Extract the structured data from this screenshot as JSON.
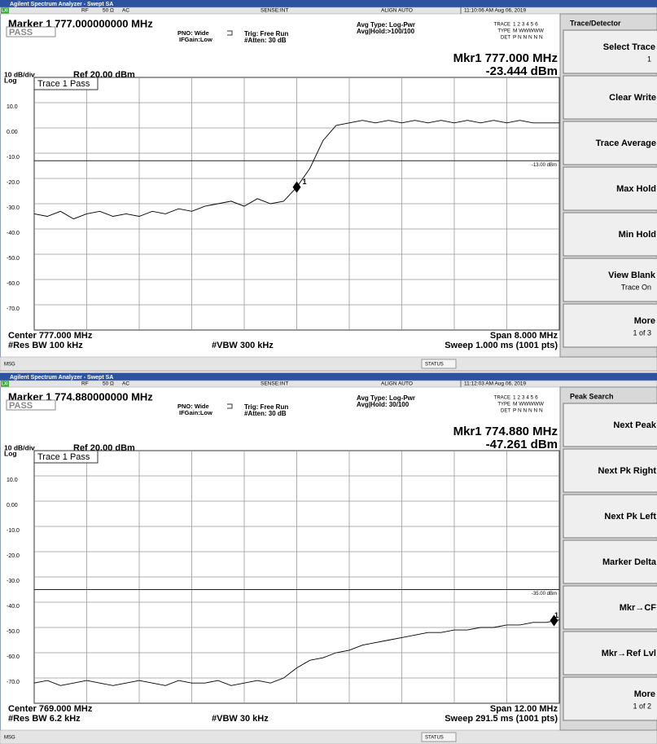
{
  "screens": [
    {
      "app_title": "Agilent Spectrum Analyzer - Swept SA",
      "status": {
        "lxi": "LXI",
        "rf": "RF",
        "impedance": "50 Ω",
        "coupling": "AC",
        "sense": "SENSE:INT",
        "align": "ALIGN AUTO",
        "time": "11:10:06 AM Aug 06, 2019"
      },
      "marker_title": "Marker 1 777.000000000 MHz",
      "pass": "PASS",
      "pno": "PNO: Wide",
      "ifgain": "IFGain:Low",
      "trig": "Trig: Free Run",
      "atten": "#Atten: 30 dB",
      "avg_type": "Avg Type: Log-Pwr",
      "avg_hold": "Avg|Hold:>100/100",
      "trace_table": [
        [
          "TRACE",
          "1 2 3 4 5 6"
        ],
        [
          "TYPE",
          "M WWWWW"
        ],
        [
          "DET",
          "P N N N N N"
        ]
      ],
      "mkr_freq": "Mkr1 777.000 MHz",
      "mkr_level": "-23.444 dBm",
      "scale": "10 dB/div",
      "log": "Log",
      "ref": "Ref 20.00 dBm",
      "trace_label": "Trace 1 Pass",
      "center": "Center 777.000 MHz",
      "rbw": "#Res BW 100 kHz",
      "vbw": "#VBW 300 kHz",
      "span": "Span 8.000 MHz",
      "sweep": "Sweep 1.000 ms (1001 pts)",
      "msg": "MSG",
      "status_box": "STATUS",
      "chart_data": {
        "type": "line",
        "xlim": [
          773,
          781
        ],
        "ylim": [
          -80,
          20
        ],
        "yticks": [
          {
            "value": 10,
            "label": "10.0"
          },
          {
            "value": 0,
            "label": "0.00"
          },
          {
            "value": -10,
            "label": "-10.0"
          },
          {
            "value": -20,
            "label": "-20.0"
          },
          {
            "value": -30,
            "label": "-30.0"
          },
          {
            "value": -40,
            "label": "-40.0"
          },
          {
            "value": -50,
            "label": "-50.0"
          },
          {
            "value": -60,
            "label": "-60.0"
          },
          {
            "value": -70,
            "label": "-70.0"
          }
        ],
        "limit_line": {
          "value": -13,
          "label": "-13.00 dBm"
        },
        "marker": {
          "x": 777,
          "y": -23.444,
          "label": "1"
        },
        "x": [
          773,
          773.2,
          773.4,
          773.6,
          773.8,
          774,
          774.2,
          774.4,
          774.6,
          774.8,
          775,
          775.2,
          775.4,
          775.6,
          775.8,
          776,
          776.2,
          776.4,
          776.6,
          776.8,
          777,
          777.2,
          777.4,
          777.6,
          777.8,
          778,
          778.2,
          778.4,
          778.6,
          778.8,
          779,
          779.2,
          779.4,
          779.6,
          779.8,
          780,
          780.2,
          780.4,
          780.6,
          780.8,
          781
        ],
        "series": [
          {
            "name": "Trace 1",
            "color": "#000000",
            "values": [
              -34,
              -35,
              -33,
              -36,
              -34,
              -33,
              -35,
              -34,
              -35,
              -33,
              -34,
              -32,
              -33,
              -31,
              -30,
              -29,
              -31,
              -28,
              -30,
              -29,
              -23.444,
              -16,
              -5,
              1,
              2,
              3,
              2,
              3,
              2,
              3,
              2,
              3,
              2,
              3,
              2,
              3,
              2,
              3,
              2,
              2,
              2
            ]
          }
        ]
      },
      "softkeys": {
        "title": "Trace/Detector",
        "keys": [
          [
            "Select Trace",
            "1"
          ],
          [
            "Clear Write"
          ],
          [
            "Trace Average"
          ],
          [
            "Max Hold"
          ],
          [
            "Min Hold"
          ],
          [
            "View Blank",
            "Trace On"
          ],
          [
            "More",
            "1 of 3"
          ]
        ]
      }
    },
    {
      "app_title": "Agilent Spectrum Analyzer - Swept SA",
      "status": {
        "lxi": "LXI",
        "rf": "RF",
        "impedance": "50 Ω",
        "coupling": "AC",
        "sense": "SENSE:INT",
        "align": "ALIGN AUTO",
        "time": "11:12:03 AM Aug 06, 2019"
      },
      "marker_title": "Marker 1 774.880000000 MHz",
      "pass": "PASS",
      "pno": "PNO: Wide",
      "ifgain": "IFGain:Low",
      "trig": "Trig: Free Run",
      "atten": "#Atten: 30 dB",
      "avg_type": "Avg Type: Log-Pwr",
      "avg_hold": "Avg|Hold: 30/100",
      "trace_table": [
        [
          "TRACE",
          "1 2 3 4 5 6"
        ],
        [
          "TYPE",
          "M WWWWW"
        ],
        [
          "DET",
          "P N N N N N"
        ]
      ],
      "mkr_freq": "Mkr1 774.880 MHz",
      "mkr_level": "-47.261 dBm",
      "scale": "10 dB/div",
      "log": "Log",
      "ref": "Ref 20.00 dBm",
      "trace_label": "Trace 1 Pass",
      "center": "Center 769.000 MHz",
      "rbw": "#Res BW 6.2 kHz",
      "vbw": "#VBW 30 kHz",
      "span": "Span 12.00 MHz",
      "sweep": "Sweep 291.5 ms (1001 pts)",
      "msg": "MSG",
      "status_box": "STATUS",
      "chart_data": {
        "type": "line",
        "xlim": [
          763,
          775
        ],
        "ylim": [
          -80,
          20
        ],
        "yticks": [
          {
            "value": 10,
            "label": "10.0"
          },
          {
            "value": 0,
            "label": "0.00"
          },
          {
            "value": -10,
            "label": "-10.0"
          },
          {
            "value": -20,
            "label": "-20.0"
          },
          {
            "value": -30,
            "label": "-30.0"
          },
          {
            "value": -40,
            "label": "-40.0"
          },
          {
            "value": -50,
            "label": "-50.0"
          },
          {
            "value": -60,
            "label": "-60.0"
          },
          {
            "value": -70,
            "label": "-70.0"
          }
        ],
        "limit_line": {
          "value": -35,
          "label": "-35.00 dBm"
        },
        "marker": {
          "x": 774.88,
          "y": -47.261,
          "label": "1"
        },
        "x": [
          763,
          763.3,
          763.6,
          763.9,
          764.2,
          764.5,
          764.8,
          765.1,
          765.4,
          765.7,
          766,
          766.3,
          766.6,
          766.9,
          767.2,
          767.5,
          767.8,
          768.1,
          768.4,
          768.7,
          769,
          769.3,
          769.6,
          769.9,
          770.2,
          770.5,
          770.8,
          771.1,
          771.4,
          771.7,
          772,
          772.3,
          772.6,
          772.9,
          773.2,
          773.5,
          773.8,
          774.1,
          774.4,
          774.7,
          775
        ],
        "series": [
          {
            "name": "Trace 1",
            "color": "#000000",
            "values": [
              -72,
              -71,
              -73,
              -72,
              -71,
              -72,
              -73,
              -72,
              -71,
              -72,
              -73,
              -71,
              -72,
              -72,
              -71,
              -73,
              -72,
              -71,
              -72,
              -70,
              -66,
              -63,
              -62,
              -60,
              -59,
              -57,
              -56,
              -55,
              -54,
              -53,
              -52,
              -52,
              -51,
              -51,
              -50,
              -50,
              -49,
              -49,
              -48,
              -48,
              -47
            ]
          }
        ]
      },
      "softkeys": {
        "title": "Peak Search",
        "keys": [
          [
            "Next Peak"
          ],
          [
            "Next Pk Right"
          ],
          [
            "Next Pk Left"
          ],
          [
            "Marker Delta"
          ],
          [
            "Mkr→CF"
          ],
          [
            "Mkr→Ref Lvl"
          ],
          [
            "More",
            "1 of 2"
          ]
        ]
      }
    }
  ]
}
